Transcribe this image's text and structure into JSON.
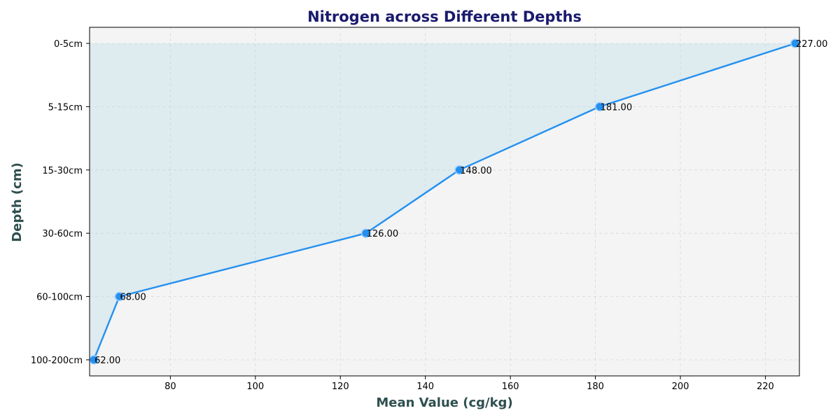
{
  "chart_data": {
    "type": "line",
    "title": "Nitrogen across Different Depths",
    "xlabel": "Mean Value (cg/kg)",
    "ylabel": "Depth (cm)",
    "xlim": [
      61,
      228
    ],
    "xticks": [
      80,
      100,
      120,
      140,
      160,
      180,
      200,
      220
    ],
    "categories": [
      "0-5cm",
      "5-15cm",
      "15-30cm",
      "30-60cm",
      "60-100cm",
      "100-200cm"
    ],
    "values": [
      227,
      181,
      148,
      126,
      68,
      62
    ],
    "data_labels": [
      "227.00",
      "181.00",
      "148.00",
      "126.00",
      "68.00",
      "62.00"
    ],
    "grid": true,
    "fill_area": true,
    "colors": {
      "line": "#2490f0",
      "marker": "#2490f0",
      "marker_edge": "#9fd0ff",
      "fill": "#add8e6",
      "plot_bg": "#f4f4f4",
      "title": "#1a1a6e",
      "axis_label": "#2f4f4f"
    }
  }
}
